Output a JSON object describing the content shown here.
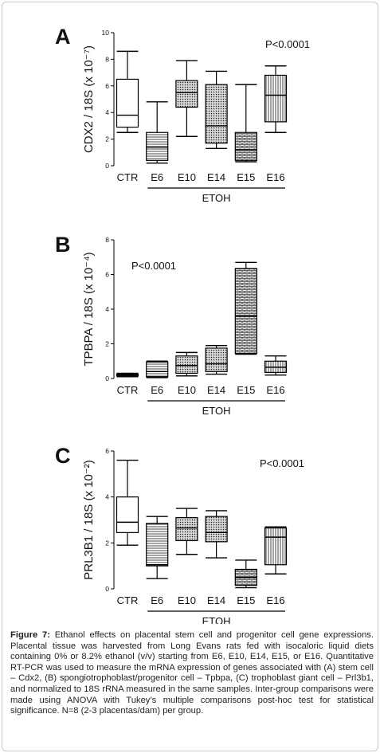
{
  "chart_data": [
    {
      "panel_label": "A",
      "type": "box",
      "ylabel": "CDX2 / 18S (x 10⁻⁷)",
      "ylim": [
        0,
        10
      ],
      "yticks": [
        "0",
        "2",
        "4",
        "6",
        "8",
        "10"
      ],
      "annotation": "P<0.0001",
      "group_label": "ETOH",
      "categories": [
        "CTR",
        "E6",
        "E10",
        "E14",
        "E15",
        "E16"
      ],
      "pattern": [
        "white",
        "hlines",
        "dots",
        "dots",
        "bricks",
        "vlines"
      ],
      "boxes": [
        {
          "min": 2.5,
          "q1": 2.9,
          "median": 3.8,
          "q3": 6.5,
          "max": 8.6
        },
        {
          "min": 0.2,
          "q1": 0.4,
          "median": 1.4,
          "q3": 2.5,
          "max": 4.8
        },
        {
          "min": 2.2,
          "q1": 4.4,
          "median": 5.5,
          "q3": 6.4,
          "max": 7.9
        },
        {
          "min": 1.3,
          "q1": 1.7,
          "median": 3.0,
          "q3": 6.1,
          "max": 7.1
        },
        {
          "min": 0.3,
          "q1": 0.4,
          "median": 1.2,
          "q3": 2.5,
          "max": 6.1
        },
        {
          "min": 2.5,
          "q1": 3.3,
          "median": 5.3,
          "q3": 6.8,
          "max": 7.5
        }
      ]
    },
    {
      "panel_label": "B",
      "type": "box",
      "ylabel": "TPBPA / 18S (x 10⁻⁴)",
      "ylim": [
        0,
        8
      ],
      "yticks": [
        "0",
        "2",
        "4",
        "6",
        "8"
      ],
      "annotation": "P<0.0001",
      "group_label": "ETOH",
      "categories": [
        "CTR",
        "E6",
        "E10",
        "E14",
        "E15",
        "E16"
      ],
      "pattern": [
        "white",
        "hlines",
        "dots",
        "dots",
        "bricks",
        "vlines"
      ],
      "boxes": [
        {
          "min": 0.1,
          "q1": 0.15,
          "median": 0.2,
          "q3": 0.25,
          "max": 0.3
        },
        {
          "min": 0.05,
          "q1": 0.1,
          "median": 0.4,
          "q3": 0.95,
          "max": 1.0
        },
        {
          "min": 0.15,
          "q1": 0.3,
          "median": 0.75,
          "q3": 1.3,
          "max": 1.5
        },
        {
          "min": 0.25,
          "q1": 0.4,
          "median": 0.85,
          "q3": 1.75,
          "max": 1.9
        },
        {
          "min": 1.4,
          "q1": 1.45,
          "median": 3.6,
          "q3": 6.35,
          "max": 6.7
        },
        {
          "min": 0.2,
          "q1": 0.35,
          "median": 0.65,
          "q3": 1.0,
          "max": 1.3
        }
      ]
    },
    {
      "panel_label": "C",
      "type": "box",
      "ylabel": "PRL3B1 / 18S (x 10⁻²)",
      "ylim": [
        0,
        6
      ],
      "yticks": [
        "0",
        "2",
        "4",
        "6"
      ],
      "annotation": "P<0.0001",
      "group_label": "ETOH",
      "categories": [
        "CTR",
        "E6",
        "E10",
        "E14",
        "E15",
        "E16"
      ],
      "pattern": [
        "white",
        "hlines",
        "dots",
        "dots",
        "bricks",
        "vlines"
      ],
      "boxes": [
        {
          "min": 1.9,
          "q1": 2.45,
          "median": 2.9,
          "q3": 4.0,
          "max": 5.6
        },
        {
          "min": 0.45,
          "q1": 1.0,
          "median": 1.05,
          "q3": 2.85,
          "max": 3.15
        },
        {
          "min": 1.5,
          "q1": 2.1,
          "median": 2.65,
          "q3": 3.1,
          "max": 3.5
        },
        {
          "min": 1.35,
          "q1": 2.05,
          "median": 2.45,
          "q3": 3.15,
          "max": 3.4
        },
        {
          "min": 0.05,
          "q1": 0.15,
          "median": 0.5,
          "q3": 0.85,
          "max": 1.25
        },
        {
          "min": 0.65,
          "q1": 1.05,
          "median": 2.25,
          "q3": 2.65,
          "max": 2.7
        }
      ]
    }
  ],
  "caption": {
    "label": "Figure 7:",
    "text": "Ethanol effects on placental stem cell and progenitor cell gene expressions. Placental tissue was harvested from Long Evans rats fed with isocaloric liquid diets containing 0% or 8.2% ethanol (v/v) starting from E6, E10, E14, E15, or E16. Quantitative RT-PCR was used to measure the mRNA expression of genes associated with (A) stem cell – Cdx2, (B) spongiotrophoblast/progenitor cell – Tpbpa, (C) trophoblast giant cell – Prl3b1, and normalized to 18S rRNA measured in the same samples. Inter-group comparisons were made using ANOVA with Tukey’s multiple comparisons post-hoc test for statistical significance. N=8 (2-3 placentas/dam) per group."
  }
}
